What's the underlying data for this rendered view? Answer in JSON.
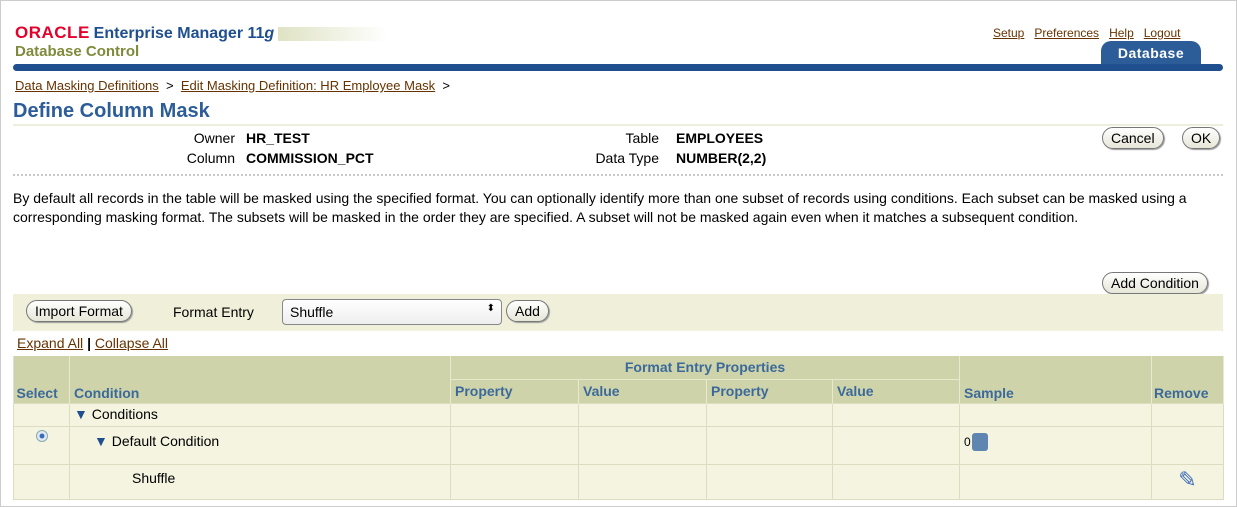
{
  "header": {
    "brand": "ORACLE",
    "product": "Enterprise Manager 11",
    "product_suffix": "g",
    "subtitle": "Database Control",
    "global_links": [
      "Setup",
      "Preferences",
      "Help",
      "Logout"
    ],
    "tab": "Database"
  },
  "breadcrumb": [
    "Data Masking Definitions",
    "Edit Masking Definition: HR Employee Mask"
  ],
  "breadcrumb_sep": ">",
  "page_title": "Define Column Mask",
  "info": {
    "owner_label": "Owner",
    "owner": "HR_TEST",
    "column_label": "Column",
    "column": "COMMISSION_PCT",
    "table_label": "Table",
    "table": "EMPLOYEES",
    "datatype_label": "Data Type",
    "datatype": "NUMBER(2,2)"
  },
  "buttons": {
    "cancel": "Cancel",
    "ok": "OK",
    "add_condition": "Add Condition",
    "import_format": "Import Format",
    "add": "Add"
  },
  "description": "By default all records in the table will be masked using the specified format. You can optionally identify more than one subset of records using conditions. Each subset can be masked using a corresponding masking format. The subsets will be masked in the order they are specified. A subset will not be masked again even when it matches a subsequent condition.",
  "format_entry": {
    "label": "Format Entry",
    "selected": "Shuffle"
  },
  "expand_all": "Expand All",
  "collapse_all": "Collapse All",
  "link_sep": "|",
  "table": {
    "group_header": "Format Entry Properties",
    "columns": [
      "Select",
      "Condition",
      "Property",
      "Value",
      "Property",
      "Value",
      "Sample",
      "Remove"
    ],
    "rows": [
      {
        "condition": "Conditions"
      },
      {
        "condition": "Default Condition",
        "selected": true,
        "sample": "0"
      },
      {
        "condition": "Shuffle"
      }
    ]
  },
  "colors": {
    "accent": "#1f4f8f",
    "header_bg": "#cfd3aa",
    "link": "#663300"
  }
}
